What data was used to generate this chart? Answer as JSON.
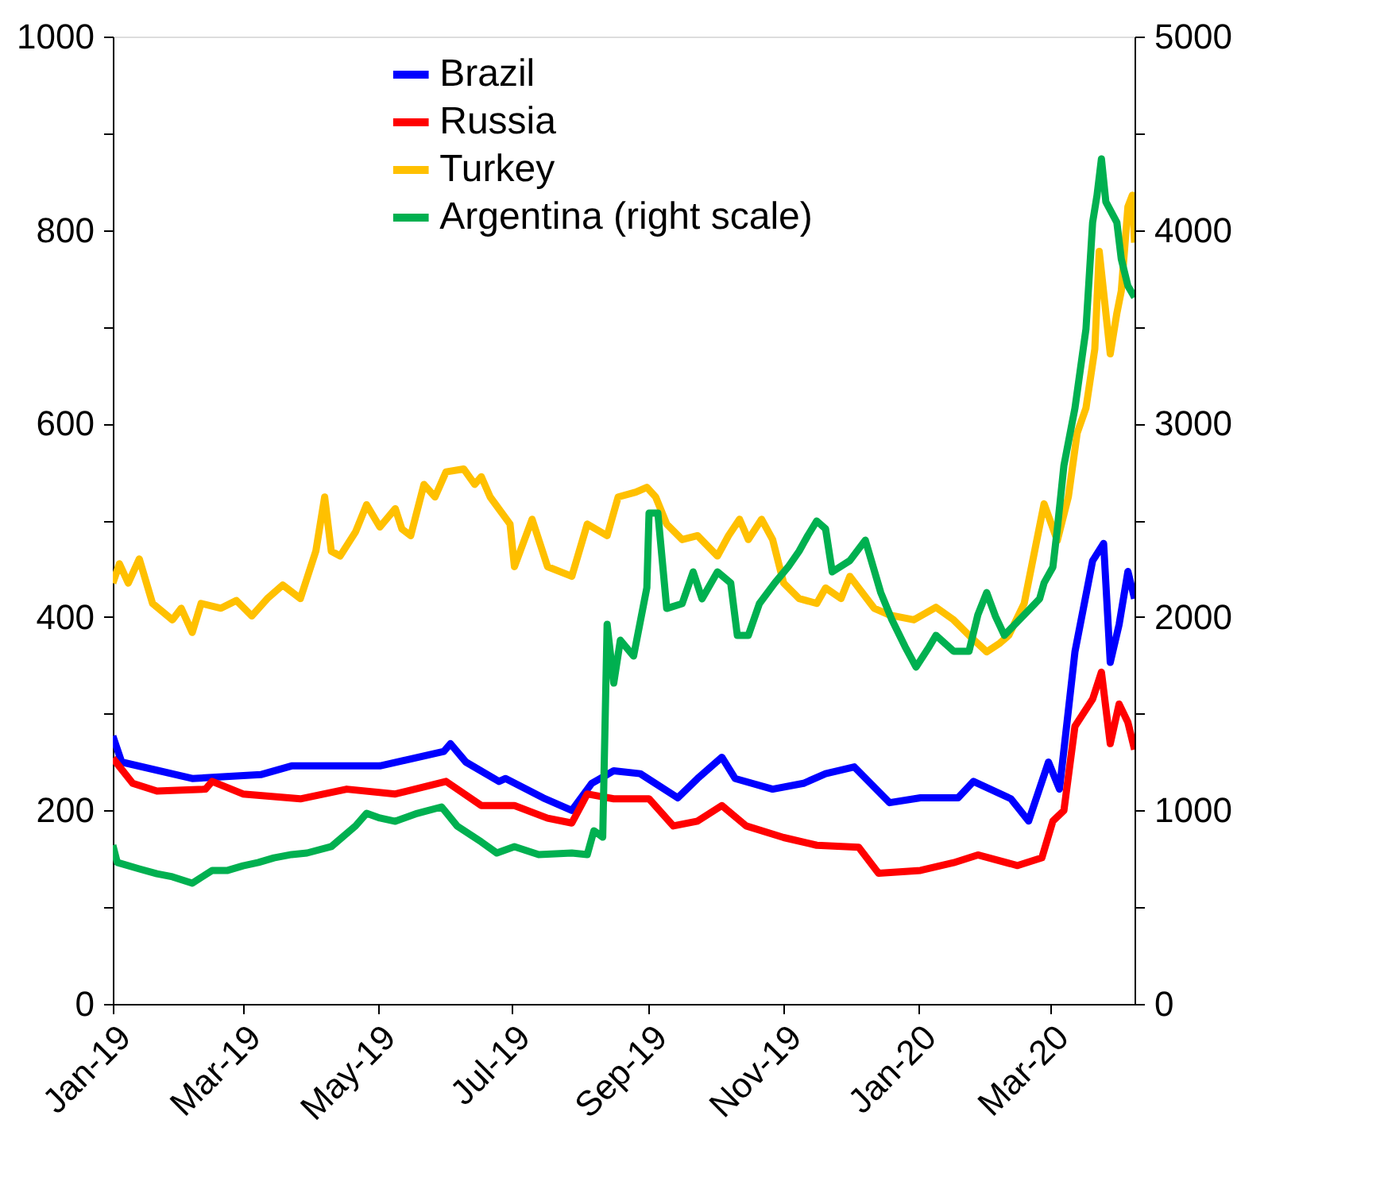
{
  "chart_data": {
    "type": "line",
    "legend": "top",
    "grid": false,
    "marker": "none",
    "line_style": "solid",
    "xlim": [
      "2019-01-01",
      "2020-04-08"
    ],
    "xticks": [
      {
        "value": "2019-01-01",
        "label": "Jan-19"
      },
      {
        "value": "2019-03-01",
        "label": "Mar-19"
      },
      {
        "value": "2019-05-01",
        "label": "May-19"
      },
      {
        "value": "2019-07-01",
        "label": "Jul-19"
      },
      {
        "value": "2019-09-01",
        "label": "Sep-19"
      },
      {
        "value": "2019-11-01",
        "label": "Nov-19"
      },
      {
        "value": "2020-01-01",
        "label": "Jan-20"
      },
      {
        "value": "2020-03-01",
        "label": "Mar-20"
      }
    ],
    "ylim": [
      0,
      1000
    ],
    "yticks": [
      0,
      {
        "value": 100,
        "label": null
      },
      200,
      {
        "value": 300,
        "label": null
      },
      400,
      {
        "value": 500,
        "label": null
      },
      600,
      {
        "value": 700,
        "label": null
      },
      800,
      {
        "value": 900,
        "label": null
      },
      1000
    ],
    "y2lim": [
      0,
      5000
    ],
    "y2ticks": [
      0,
      {
        "value": 500,
        "label": null
      },
      1000,
      {
        "value": 1500,
        "label": null
      },
      2000,
      {
        "value": 2500,
        "label": null
      },
      3000,
      {
        "value": 3500,
        "label": null
      },
      4000,
      {
        "value": 4500,
        "label": null
      },
      5000
    ],
    "series": [
      {
        "name": "Brazil",
        "color": "#0000ff",
        "x": [
          "2019-01-01",
          "2019-01-05",
          "2019-02-06",
          "2019-03-09",
          "2019-03-23",
          "2019-05-02",
          "2019-05-31",
          "2019-06-03",
          "2019-06-10",
          "2019-06-25",
          "2019-06-28",
          "2019-07-15",
          "2019-07-28",
          "2019-08-06",
          "2019-08-16",
          "2019-08-28",
          "2019-09-14",
          "2019-09-23",
          "2019-10-04",
          "2019-10-10",
          "2019-10-27",
          "2019-11-10",
          "2019-11-20",
          "2019-12-03",
          "2019-12-19",
          "2020-01-02",
          "2020-01-19",
          "2020-01-26",
          "2020-02-12",
          "2020-02-20",
          "2020-02-29",
          "2020-03-05",
          "2020-03-12",
          "2020-03-20",
          "2020-03-25",
          "2020-03-28",
          "2020-04-01",
          "2020-04-05",
          "2020-04-08"
        ],
        "values": [
          277,
          250,
          233,
          237,
          246,
          246,
          261,
          269,
          250,
          230,
          233,
          213,
          200,
          228,
          241,
          238,
          213,
          233,
          255,
          233,
          222,
          228,
          238,
          245,
          208,
          213,
          213,
          230,
          212,
          189,
          250,
          222,
          364,
          458,
          476,
          353,
          392,
          447,
          419
        ]
      },
      {
        "name": "Russia",
        "color": "#ff0000",
        "x": [
          "2019-01-01",
          "2019-01-10",
          "2019-01-21",
          "2019-02-12",
          "2019-02-15",
          "2019-03-01",
          "2019-03-27",
          "2019-04-17",
          "2019-05-09",
          "2019-06-01",
          "2019-06-17",
          "2019-07-02",
          "2019-07-17",
          "2019-07-28",
          "2019-08-04",
          "2019-08-16",
          "2019-09-01",
          "2019-09-12",
          "2019-09-23",
          "2019-10-04",
          "2019-10-15",
          "2019-11-01",
          "2019-11-16",
          "2019-12-05",
          "2019-12-14",
          "2020-01-02",
          "2020-01-17",
          "2020-01-28",
          "2020-02-15",
          "2020-02-26",
          "2020-03-02",
          "2020-03-07",
          "2020-03-12",
          "2020-03-20",
          "2020-03-24",
          "2020-03-28",
          "2020-04-01",
          "2020-04-05",
          "2020-04-08"
        ],
        "values": [
          254,
          228,
          220,
          222,
          230,
          217,
          212,
          222,
          217,
          230,
          205,
          205,
          192,
          187,
          217,
          212,
          212,
          184,
          189,
          205,
          184,
          172,
          164,
          162,
          135,
          138,
          146,
          154,
          143,
          151,
          189,
          200,
          287,
          315,
          343,
          269,
          310,
          291,
          263
        ]
      },
      {
        "name": "Turkey",
        "color": "#ffc000",
        "x": [
          "2019-01-01",
          "2019-01-04",
          "2019-01-08",
          "2019-01-13",
          "2019-01-19",
          "2019-01-28",
          "2019-02-01",
          "2019-02-06",
          "2019-02-10",
          "2019-02-19",
          "2019-02-26",
          "2019-03-05",
          "2019-03-12",
          "2019-03-19",
          "2019-03-27",
          "2019-04-03",
          "2019-04-07",
          "2019-04-10",
          "2019-04-14",
          "2019-04-21",
          "2019-04-26",
          "2019-05-02",
          "2019-05-09",
          "2019-05-12",
          "2019-05-16",
          "2019-05-22",
          "2019-05-27",
          "2019-06-01",
          "2019-06-09",
          "2019-06-14",
          "2019-06-17",
          "2019-06-21",
          "2019-06-30",
          "2019-07-02",
          "2019-07-10",
          "2019-07-17",
          "2019-07-28",
          "2019-08-04",
          "2019-08-13",
          "2019-08-18",
          "2019-08-26",
          "2019-08-31",
          "2019-09-04",
          "2019-09-09",
          "2019-09-16",
          "2019-09-23",
          "2019-10-02",
          "2019-10-07",
          "2019-10-12",
          "2019-10-16",
          "2019-10-22",
          "2019-10-27",
          "2019-11-01",
          "2019-11-08",
          "2019-11-16",
          "2019-11-20",
          "2019-11-27",
          "2019-12-01",
          "2019-12-12",
          "2019-12-19",
          "2019-12-30",
          "2020-01-09",
          "2020-01-17",
          "2020-01-24",
          "2020-02-01",
          "2020-02-07",
          "2020-02-11",
          "2020-02-18",
          "2020-02-27",
          "2020-03-04",
          "2020-03-09",
          "2020-03-13",
          "2020-03-17",
          "2020-03-21",
          "2020-03-23",
          "2020-03-28",
          "2020-03-31",
          "2020-04-02",
          "2020-04-05",
          "2020-04-07",
          "2020-04-08"
        ],
        "values": [
          435,
          455,
          435,
          460,
          414,
          397,
          409,
          384,
          414,
          409,
          417,
          401,
          419,
          433,
          419,
          468,
          524,
          468,
          463,
          488,
          516,
          493,
          512,
          491,
          484,
          537,
          524,
          550,
          553,
          537,
          545,
          524,
          496,
          452,
          501,
          452,
          442,
          496,
          484,
          524,
          529,
          534,
          524,
          496,
          480,
          484,
          463,
          484,
          501,
          480,
          501,
          480,
          435,
          419,
          414,
          430,
          419,
          442,
          409,
          402,
          397,
          410,
          397,
          381,
          364,
          373,
          381,
          414,
          517,
          479,
          524,
          590,
          616,
          677,
          778,
          672,
          714,
          737,
          824,
          836,
          787
        ]
      },
      {
        "name": "Argentina (right scale)",
        "color": "#00b050",
        "axis": "y2",
        "x": [
          "2019-01-01",
          "2019-01-03",
          "2019-01-13",
          "2019-01-21",
          "2019-01-28",
          "2019-02-06",
          "2019-02-15",
          "2019-02-22",
          "2019-03-01",
          "2019-03-08",
          "2019-03-15",
          "2019-03-23",
          "2019-03-30",
          "2019-04-10",
          "2019-04-21",
          "2019-04-26",
          "2019-05-02",
          "2019-05-09",
          "2019-05-19",
          "2019-05-30",
          "2019-06-06",
          "2019-06-17",
          "2019-06-24",
          "2019-07-02",
          "2019-07-13",
          "2019-07-28",
          "2019-08-04",
          "2019-08-07",
          "2019-08-11",
          "2019-08-13",
          "2019-08-16",
          "2019-08-19",
          "2019-08-25",
          "2019-08-31",
          "2019-09-01",
          "2019-09-05",
          "2019-09-09",
          "2019-09-16",
          "2019-09-21",
          "2019-09-25",
          "2019-10-02",
          "2019-10-08",
          "2019-10-11",
          "2019-10-16",
          "2019-10-21",
          "2019-10-28",
          "2019-11-03",
          "2019-11-08",
          "2019-11-12",
          "2019-11-16",
          "2019-11-20",
          "2019-11-23",
          "2019-12-01",
          "2019-12-08",
          "2019-12-15",
          "2019-12-20",
          "2019-12-26",
          "2019-12-31",
          "2020-01-06",
          "2020-01-09",
          "2020-01-17",
          "2020-01-24",
          "2020-01-28",
          "2020-02-01",
          "2020-02-05",
          "2020-02-09",
          "2020-02-18",
          "2020-02-25",
          "2020-02-27",
          "2020-03-02",
          "2020-03-04",
          "2020-03-07",
          "2020-03-12",
          "2020-03-17",
          "2020-03-20",
          "2020-03-22",
          "2020-03-24",
          "2020-03-26",
          "2020-03-31",
          "2020-04-02",
          "2020-04-05",
          "2020-04-08"
        ],
        "values": [
          821,
          731,
          698,
          673,
          657,
          624,
          690,
          690,
          714,
          731,
          755,
          772,
          780,
          813,
          920,
          985,
          961,
          944,
          985,
          1018,
          920,
          837,
          780,
          813,
          772,
          780,
          772,
          895,
          862,
          1962,
          1658,
          1880,
          1798,
          2151,
          2537,
          2537,
          2044,
          2069,
          2233,
          2094,
          2233,
          2176,
          1905,
          1905,
          2069,
          2176,
          2258,
          2340,
          2422,
          2496,
          2455,
          2233,
          2291,
          2397,
          2126,
          1987,
          1847,
          1741,
          1847,
          1905,
          1823,
          1823,
          2011,
          2126,
          2003,
          1905,
          2011,
          2094,
          2176,
          2258,
          2455,
          2783,
          3079,
          3489,
          4039,
          4179,
          4368,
          4146,
          4039,
          3850,
          3711,
          3653
        ]
      }
    ]
  }
}
